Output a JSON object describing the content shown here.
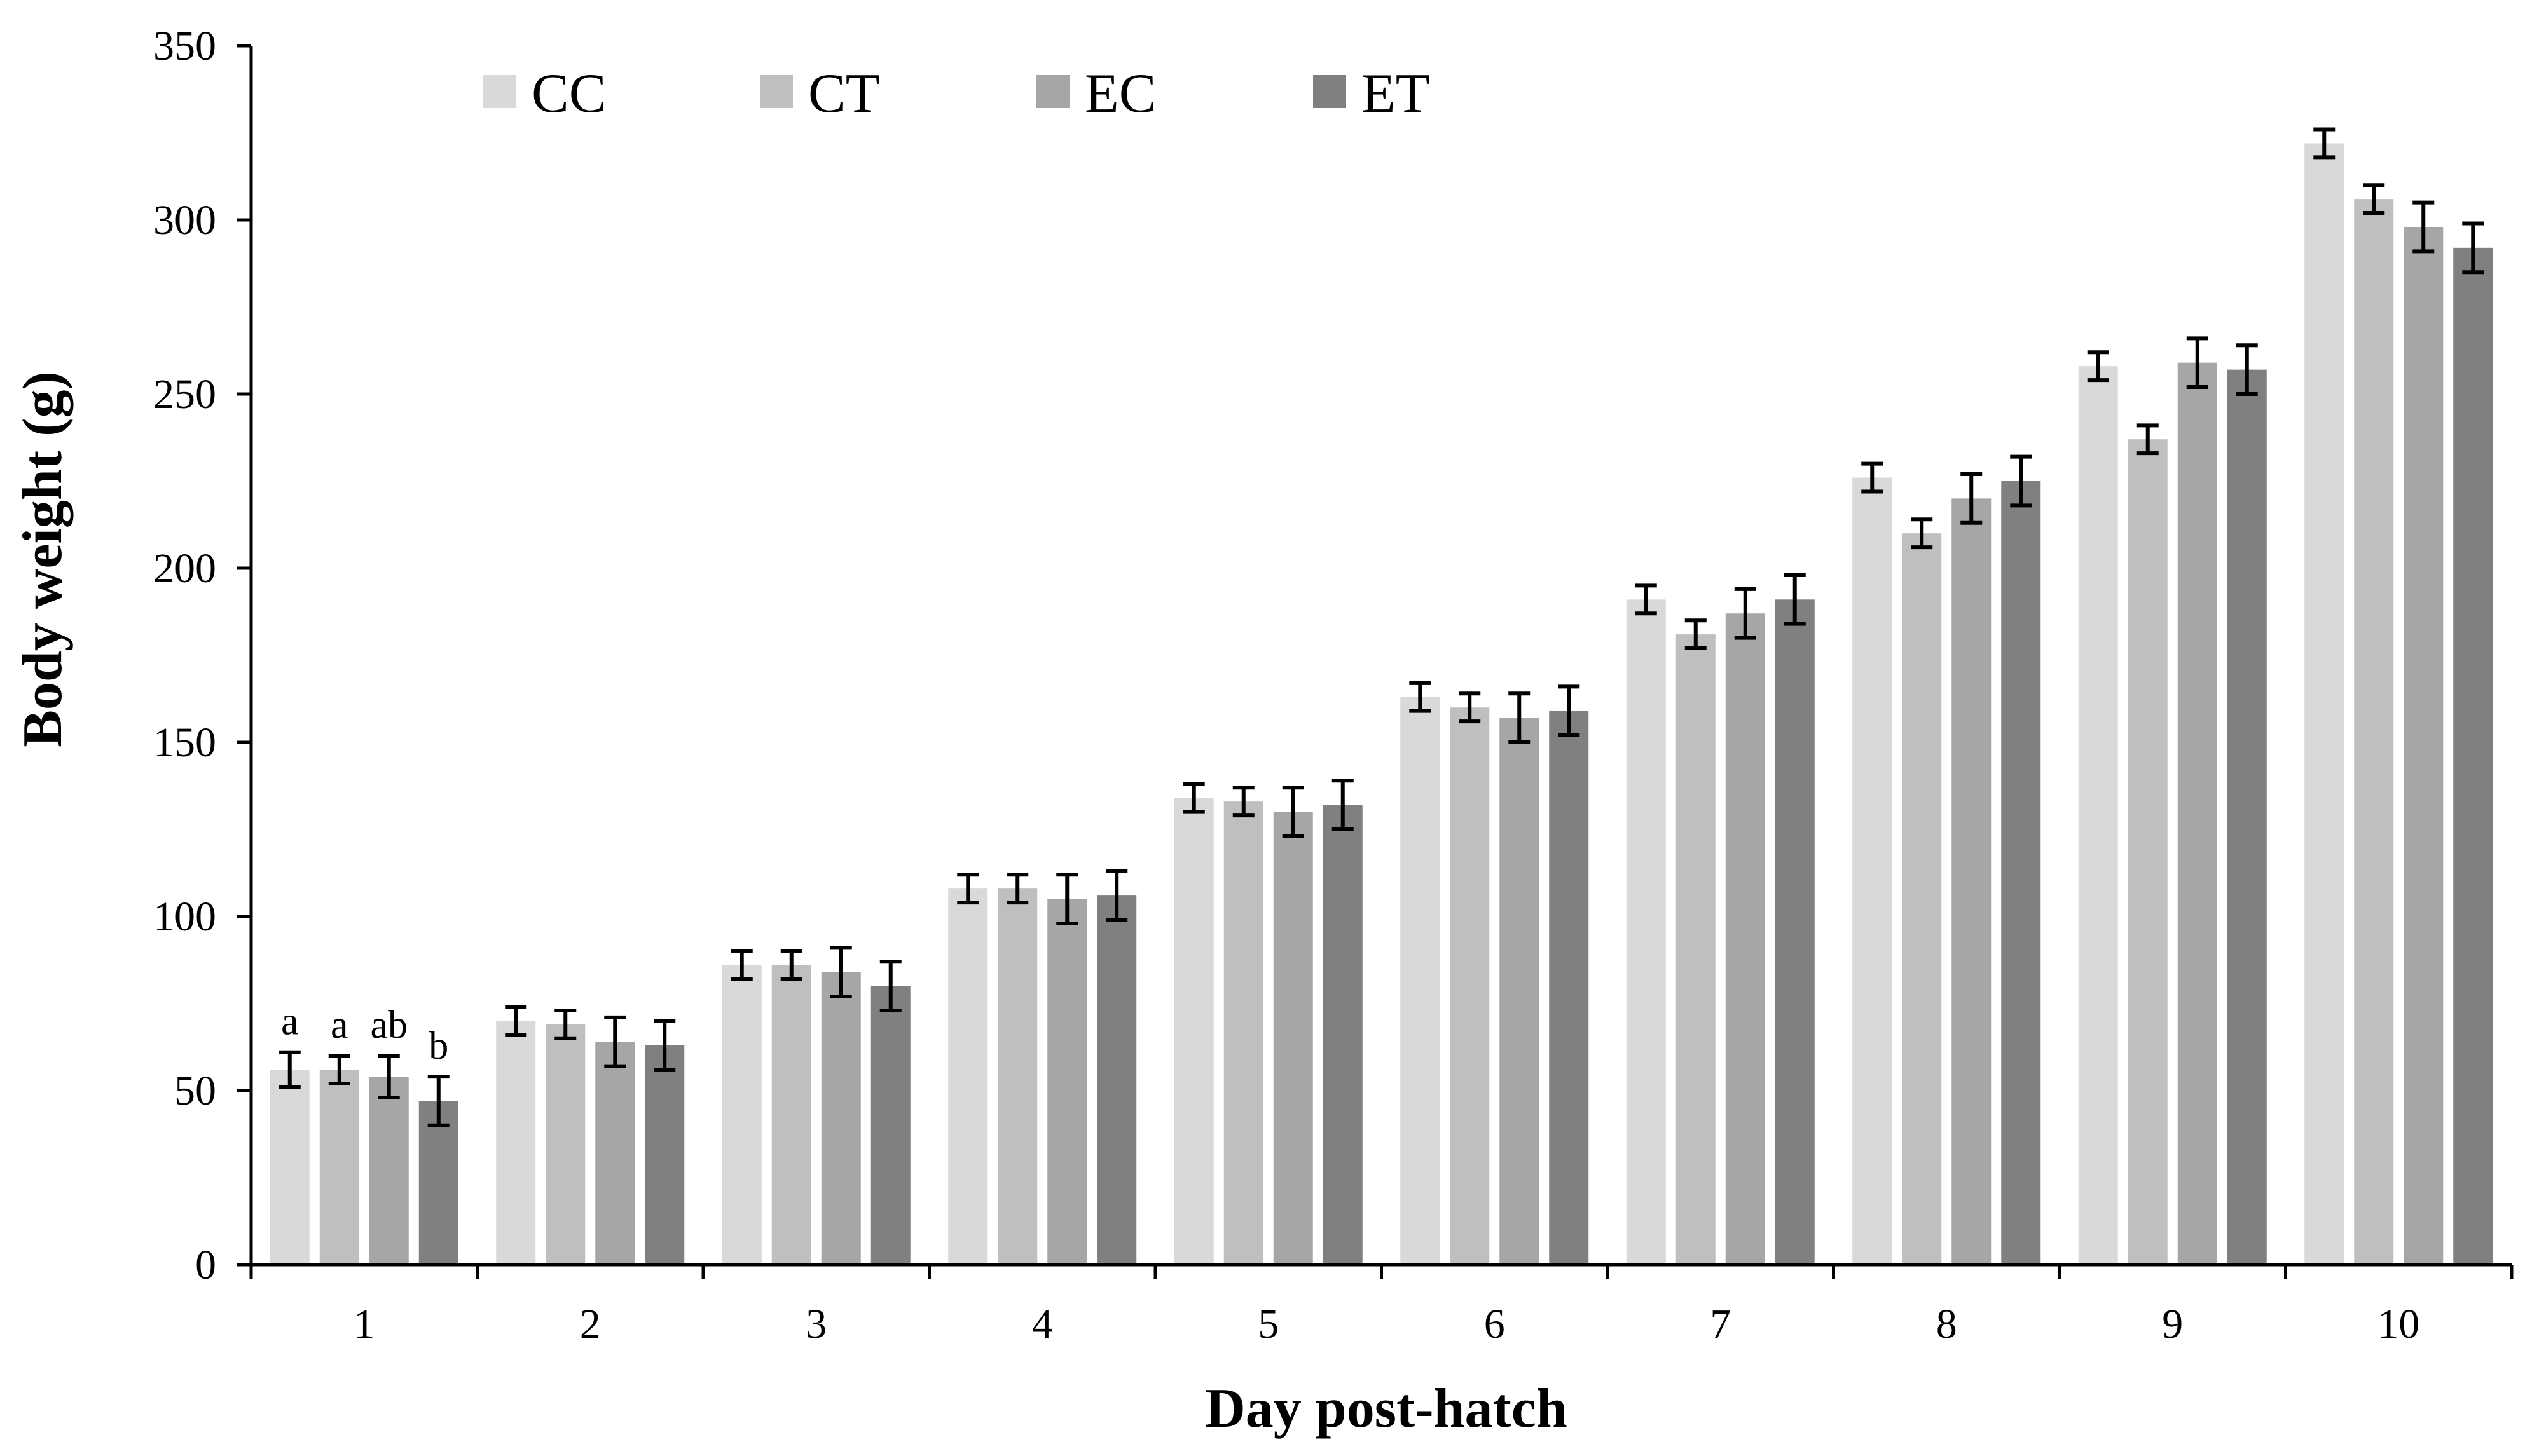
{
  "chart_data": {
    "type": "bar",
    "title": "",
    "xlabel": "Day post-hatch",
    "ylabel": "Body weight (g)",
    "ylim": [
      0,
      350
    ],
    "yticks": [
      0,
      50,
      100,
      150,
      200,
      250,
      300,
      350
    ],
    "grid": false,
    "legend_position": "top",
    "categories": [
      "1",
      "2",
      "3",
      "4",
      "5",
      "6",
      "7",
      "8",
      "9",
      "10"
    ],
    "series": [
      {
        "name": "CC",
        "color": "#d9d9d9",
        "values": [
          56,
          70,
          86,
          108,
          134,
          163,
          191,
          226,
          258,
          322
        ],
        "errors": [
          5,
          4,
          4,
          4,
          4,
          4,
          4,
          4,
          4,
          4
        ]
      },
      {
        "name": "CT",
        "color": "#bfbfbf",
        "values": [
          56,
          69,
          86,
          108,
          133,
          160,
          181,
          210,
          237,
          306
        ],
        "errors": [
          4,
          4,
          4,
          4,
          4,
          4,
          4,
          4,
          4,
          4
        ]
      },
      {
        "name": "EC",
        "color": "#a6a6a6",
        "values": [
          54,
          64,
          84,
          105,
          130,
          157,
          187,
          220,
          259,
          298
        ],
        "errors": [
          6,
          7,
          7,
          7,
          7,
          7,
          7,
          7,
          7,
          7
        ]
      },
      {
        "name": "ET",
        "color": "#808080",
        "values": [
          47,
          63,
          80,
          106,
          132,
          159,
          191,
          225,
          257,
          292
        ],
        "errors": [
          7,
          7,
          7,
          7,
          7,
          7,
          7,
          7,
          7,
          7
        ]
      }
    ],
    "annotations": [
      {
        "category": "1",
        "series": "CC",
        "text": "a"
      },
      {
        "category": "1",
        "series": "CT",
        "text": "a"
      },
      {
        "category": "1",
        "series": "EC",
        "text": "ab"
      },
      {
        "category": "1",
        "series": "ET",
        "text": "b"
      }
    ]
  }
}
